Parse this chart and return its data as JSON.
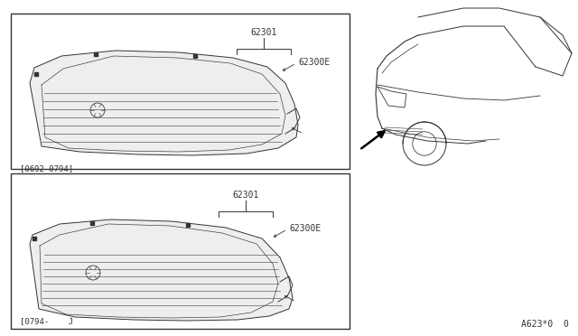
{
  "bg_color": "#ffffff",
  "outer_bg": "#f0f0f0",
  "line_color": "#333333",
  "diagram_ref": "A623*0  0",
  "part_labels": {
    "62301_top": "62301",
    "62300E_top": "62300E",
    "62301_bot": "62301",
    "62300E_bot": "62300E"
  },
  "date_labels": {
    "top": "[0692-0794]",
    "bot": "[0794-    J"
  },
  "font_size_label": 7,
  "font_size_date": 6.5,
  "font_size_ref": 7
}
